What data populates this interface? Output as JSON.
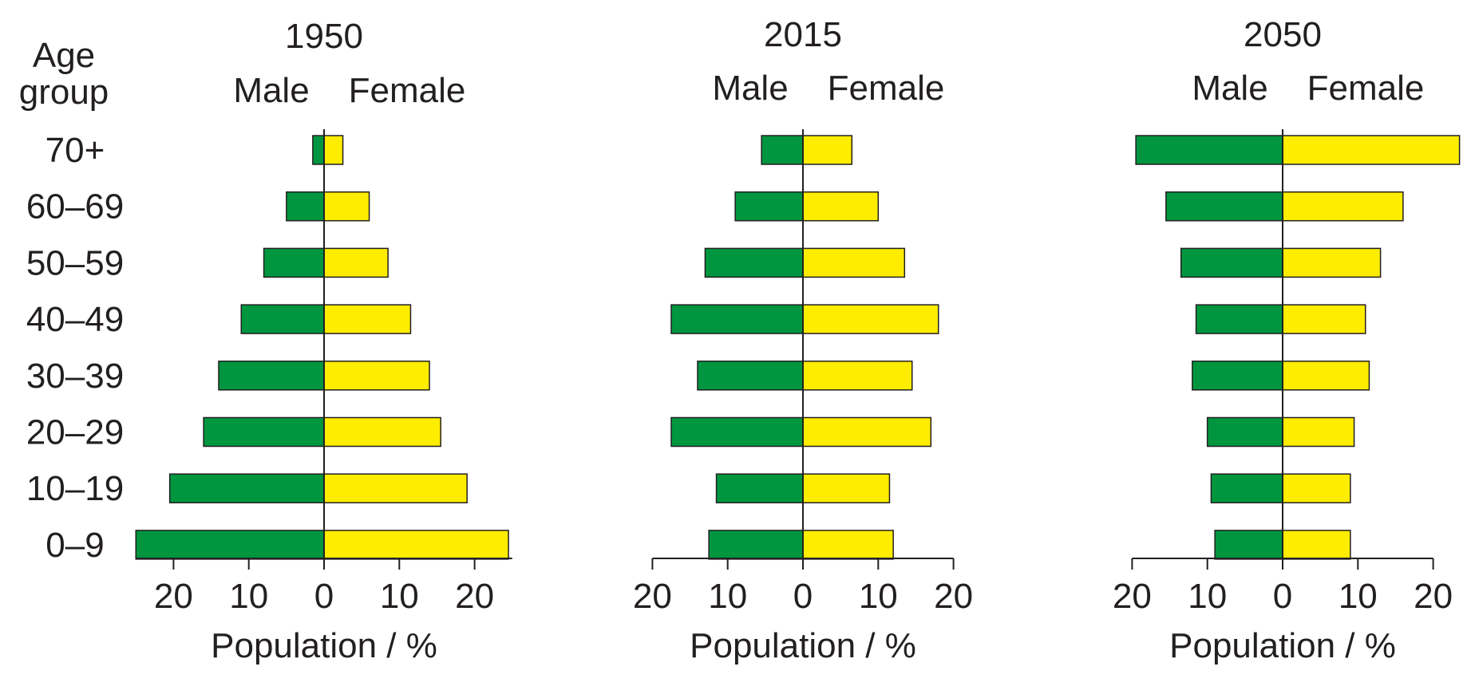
{
  "age_group_label_line1": "Age",
  "age_group_label_line2": "group",
  "chart_data": [
    {
      "type": "bar",
      "title": "1950",
      "male_label": "Male",
      "female_label": "Female",
      "xlabel": "Population / %",
      "categories": [
        "70+",
        "60–69",
        "50–59",
        "40–49",
        "30–39",
        "20–29",
        "10–19",
        "0–9"
      ],
      "series": [
        {
          "name": "Male",
          "color": "#00963f",
          "values": [
            1.5,
            5,
            8,
            11,
            14,
            16,
            20.5,
            25
          ]
        },
        {
          "name": "Female",
          "color": "#ffed00",
          "values": [
            2.5,
            6,
            8.5,
            11.5,
            14,
            15.5,
            19,
            24.5
          ]
        }
      ],
      "xticks": [
        20,
        10,
        0,
        10,
        20
      ],
      "xlim": [
        -25,
        25
      ],
      "grid": false
    },
    {
      "type": "bar",
      "title": "2015",
      "male_label": "Male",
      "female_label": "Female",
      "xlabel": "Population / %",
      "categories": [
        "70+",
        "60–69",
        "50–59",
        "40–49",
        "30–39",
        "20–29",
        "10–19",
        "0–9"
      ],
      "series": [
        {
          "name": "Male",
          "color": "#00963f",
          "values": [
            5.5,
            9,
            13,
            17.5,
            14,
            17.5,
            11.5,
            12.5
          ]
        },
        {
          "name": "Female",
          "color": "#ffed00",
          "values": [
            6.5,
            10,
            13.5,
            18,
            14.5,
            17,
            11.5,
            12
          ]
        }
      ],
      "xticks": [
        20,
        10,
        0,
        10,
        20
      ],
      "xlim": [
        -20,
        20
      ],
      "grid": false
    },
    {
      "type": "bar",
      "title": "2050",
      "male_label": "Male",
      "female_label": "Female",
      "xlabel": "Population / %",
      "categories": [
        "70+",
        "60–69",
        "50–59",
        "40–49",
        "30–39",
        "20–29",
        "10–19",
        "0–9"
      ],
      "series": [
        {
          "name": "Male",
          "color": "#00963f",
          "values": [
            19.5,
            15.5,
            13.5,
            11.5,
            12,
            10,
            9.5,
            9
          ]
        },
        {
          "name": "Female",
          "color": "#ffed00",
          "values": [
            23.5,
            16,
            13,
            11,
            11.5,
            9.5,
            9,
            9
          ]
        }
      ],
      "xticks": [
        20,
        10,
        0,
        10,
        20
      ],
      "xlim": [
        -20,
        20
      ],
      "grid": false
    }
  ]
}
